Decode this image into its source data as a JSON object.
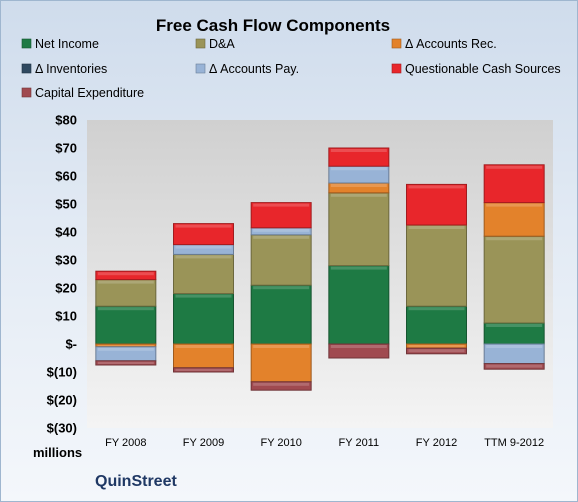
{
  "chart_data": {
    "type": "bar",
    "stacked": true,
    "title": "Free Cash Flow Components",
    "unit_label": "millions",
    "company": "QuinStreet",
    "categories": [
      "FY 2008",
      "FY 2009",
      "FY 2010",
      "FY 2011",
      "FY 2012",
      "TTM 9-2012"
    ],
    "ylim": [
      -30,
      80
    ],
    "yticks": [
      {
        "value": 80,
        "label": "$80"
      },
      {
        "value": 70,
        "label": "$70"
      },
      {
        "value": 60,
        "label": "$60"
      },
      {
        "value": 50,
        "label": "$50"
      },
      {
        "value": 40,
        "label": "$40"
      },
      {
        "value": 30,
        "label": "$30"
      },
      {
        "value": 20,
        "label": "$20"
      },
      {
        "value": 10,
        "label": "$10"
      },
      {
        "value": 0,
        "label": "$-"
      },
      {
        "value": -10,
        "label": "$(10)"
      },
      {
        "value": -20,
        "label": "$(20)"
      },
      {
        "value": -30,
        "label": "$(30)"
      }
    ],
    "grid": false,
    "legend_position": "top",
    "series": [
      {
        "name": "Net Income",
        "color": "#1e7a44",
        "values": [
          13.5,
          18,
          21,
          28,
          13.5,
          7.5
        ]
      },
      {
        "name": "D&A",
        "color": "#9a9458",
        "values": [
          9.5,
          14,
          18,
          26,
          29,
          31
        ]
      },
      {
        "name": "Δ Accounts Rec.",
        "color": "#e3822b",
        "values": [
          -1,
          -8.5,
          -13.5,
          3.5,
          -1.5,
          12
        ]
      },
      {
        "name": "Δ Inventories",
        "color": "#2f4960",
        "values": [
          0,
          0,
          0,
          0,
          0,
          0
        ]
      },
      {
        "name": "Δ Accounts Pay.",
        "color": "#98b3d6",
        "values": [
          -5,
          3.5,
          2.5,
          6,
          0,
          -7
        ]
      },
      {
        "name": "Questionable Cash Sources",
        "color": "#e8262b",
        "values": [
          3,
          7.5,
          9,
          6.5,
          14.5,
          13.5
        ]
      },
      {
        "name": "Capital Expenditure",
        "color": "#a04a50",
        "values": [
          -1.5,
          -1.5,
          -3,
          -5,
          -2,
          -2
        ]
      }
    ]
  }
}
